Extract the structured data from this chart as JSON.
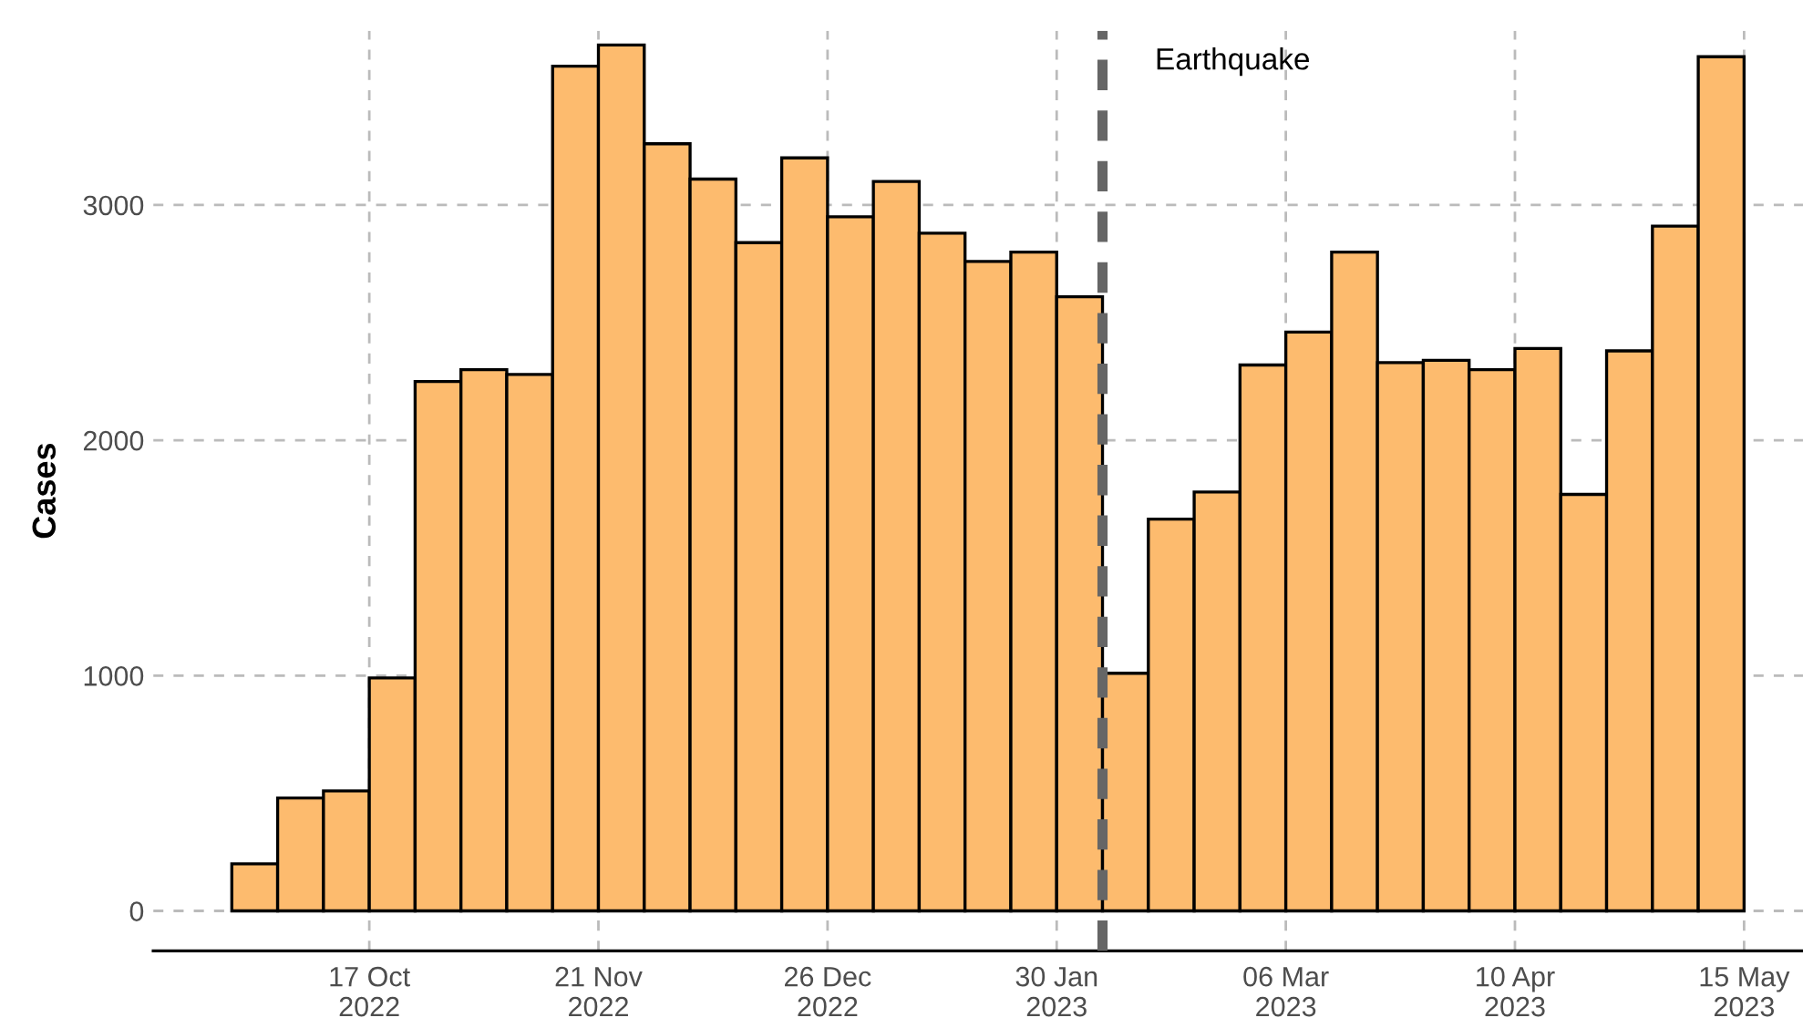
{
  "chart_data": {
    "type": "histogram",
    "ylabel": "Cases",
    "color": "#fdbb6e",
    "bins": [
      "2022-09-26",
      "2022-10-03",
      "2022-10-10",
      "2022-10-17",
      "2022-10-24",
      "2022-10-31",
      "2022-11-07",
      "2022-11-14",
      "2022-11-21",
      "2022-11-28",
      "2022-12-05",
      "2022-12-12",
      "2022-12-19",
      "2022-12-26",
      "2023-01-02",
      "2023-01-09",
      "2023-01-16",
      "2023-01-23",
      "2023-01-30",
      "2023-02-06",
      "2023-02-13",
      "2023-02-20",
      "2023-02-27",
      "2023-03-06",
      "2023-03-13",
      "2023-03-20",
      "2023-03-27",
      "2023-04-03",
      "2023-04-10",
      "2023-04-17",
      "2023-04-24",
      "2023-05-01",
      "2023-05-08",
      "2023-05-15"
    ],
    "values": [
      200,
      480,
      510,
      990,
      2250,
      2300,
      2280,
      3590,
      3680,
      3260,
      3110,
      2840,
      3200,
      2950,
      3100,
      2880,
      2760,
      2800,
      2610,
      1010,
      1665,
      1780,
      2320,
      2460,
      2800,
      2330,
      2340,
      2300,
      2390,
      1770,
      2380,
      2910,
      3630
    ],
    "xlim": [
      "2022-09-14",
      "2023-05-24"
    ],
    "ylim": [
      -170,
      3740
    ],
    "xticks": [
      {
        "value": "2022-10-17",
        "label": "17 Oct\n2022"
      },
      {
        "value": "2022-11-21",
        "label": "21 Nov\n2022"
      },
      {
        "value": "2022-12-26",
        "label": "26 Dec\n2022"
      },
      {
        "value": "2023-01-30",
        "label": "30 Jan\n2023"
      },
      {
        "value": "2023-03-06",
        "label": "06 Mar\n2023"
      },
      {
        "value": "2023-04-10",
        "label": "10 Apr\n2023"
      },
      {
        "value": "2023-05-15",
        "label": "15 May\n2023"
      }
    ],
    "yticks": [
      0,
      1000,
      2000,
      3000
    ],
    "grid": true,
    "ref_lines": [
      {
        "axis": "x",
        "value": "2023-02-06",
        "label": "Earthquake",
        "color": "#666666",
        "line_style": "dashed"
      }
    ]
  }
}
